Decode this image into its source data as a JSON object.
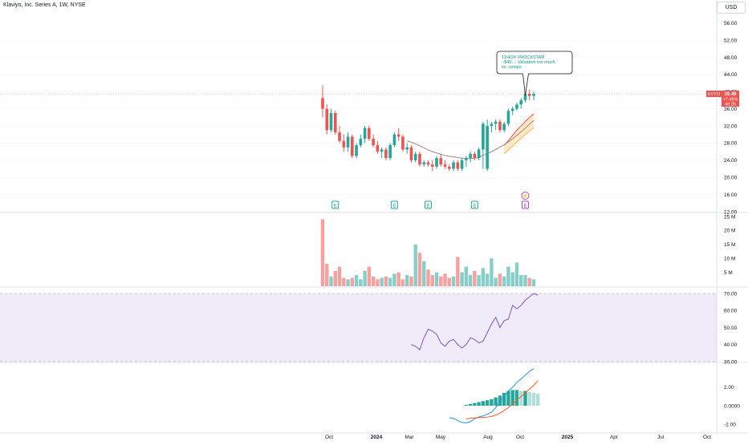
{
  "header": {
    "symbol_title": "Klaviyo, Inc. Series A, 1W, NYSE",
    "currency": "USD"
  },
  "price_badge": {
    "ticker": "KVYO",
    "price": "39.49",
    "change": "+7.46%",
    "countdown": "4d 2h"
  },
  "annotation": {
    "lines": [
      "11/4/24 VROCKSTAR",
      "~$40.... Valuation too much",
      "vs. comps"
    ]
  },
  "event_markers": {
    "earnings_label": "E",
    "dividend_symbol": "⚡"
  },
  "colors": {
    "up": "#26a69a",
    "down": "#ef5350",
    "rsi": "#7e57c2",
    "macd": "#2196f3",
    "signal": "#ff5722",
    "ma": "#a1887f",
    "band": "#f9a825"
  },
  "chart_data": [
    {
      "type": "candlestick",
      "name": "price",
      "ylim": [
        12,
        58
      ],
      "yticks": [
        "56.00",
        "52.00",
        "48.00",
        "44.00",
        "40.00",
        "36.00",
        "32.00",
        "28.00",
        "24.00",
        "20.00",
        "16.00",
        "12.00"
      ],
      "last_price": 39.49,
      "candles": [
        [
          38.5,
          41.5,
          34,
          36
        ],
        [
          36,
          37,
          30,
          31
        ],
        [
          31,
          36,
          30.5,
          35
        ],
        [
          35,
          35.5,
          30,
          30.5
        ],
        [
          30.5,
          32,
          28,
          28.5
        ],
        [
          28.5,
          30,
          26,
          27
        ],
        [
          27,
          30.5,
          26,
          29.5
        ],
        [
          29.5,
          30,
          24.5,
          25
        ],
        [
          25,
          28,
          24.5,
          27.5
        ],
        [
          27.5,
          30,
          27,
          29
        ],
        [
          29,
          32,
          28,
          31.5
        ],
        [
          31.5,
          32,
          28.5,
          29
        ],
        [
          29,
          30,
          27,
          27.5
        ],
        [
          27.5,
          28.5,
          25.5,
          26
        ],
        [
          26,
          27,
          24.5,
          26.5
        ],
        [
          26.5,
          27,
          24,
          24.5
        ],
        [
          24.5,
          28,
          24,
          27.5
        ],
        [
          27.5,
          30.5,
          27,
          30
        ],
        [
          30,
          31.5,
          28.5,
          29.5
        ],
        [
          29.5,
          30,
          26,
          26.5
        ],
        [
          26.5,
          28,
          25.5,
          27
        ],
        [
          27,
          27.5,
          23.5,
          24
        ],
        [
          24,
          26,
          23.5,
          25.5
        ],
        [
          25.5,
          26,
          22.5,
          23
        ],
        [
          23,
          24,
          22.5,
          23.5
        ],
        [
          23.5,
          24,
          22.5,
          23
        ],
        [
          23,
          24,
          21.5,
          22.5
        ],
        [
          22.5,
          25,
          22,
          24.5
        ],
        [
          24.5,
          25.5,
          22.5,
          23
        ],
        [
          23,
          24,
          22,
          22.5
        ],
        [
          22.5,
          23,
          21.5,
          22
        ],
        [
          22,
          24,
          21.5,
          23.5
        ],
        [
          23.5,
          24,
          21.5,
          22
        ],
        [
          22,
          24.5,
          21.5,
          24
        ],
        [
          24,
          25,
          22.5,
          24.5
        ],
        [
          24.5,
          26,
          23.5,
          25.5
        ],
        [
          25.5,
          26,
          24,
          24.5
        ],
        [
          24.5,
          27,
          24,
          26.5
        ],
        [
          26.5,
          33,
          22,
          32.5
        ],
        [
          22,
          33.5,
          21.5,
          32
        ],
        [
          32,
          33,
          30.5,
          32.5
        ],
        [
          32.5,
          33.5,
          31,
          33
        ],
        [
          33,
          33.5,
          30.5,
          31
        ],
        [
          31,
          33,
          30.5,
          32.5
        ],
        [
          32.5,
          36,
          32,
          35.5
        ],
        [
          35.5,
          36.5,
          34.5,
          36
        ],
        [
          36,
          37.5,
          35.5,
          37
        ],
        [
          37,
          38.5,
          36,
          38
        ],
        [
          38,
          40,
          37.5,
          39.5
        ],
        [
          39.5,
          40.5,
          38,
          39
        ],
        [
          39,
          40,
          38,
          39.49
        ]
      ],
      "ma": [
        null,
        null,
        null,
        null,
        null,
        null,
        null,
        null,
        null,
        null,
        null,
        null,
        null,
        null,
        null,
        null,
        null,
        null,
        null,
        null,
        28.5,
        28.2,
        27.8,
        27.4,
        26.9,
        26.4,
        26.0,
        25.7,
        25.4,
        25.1,
        24.9,
        24.8,
        24.6,
        24.5,
        24.4,
        24.4,
        24.5,
        24.6,
        25.2,
        25.5,
        26.0,
        26.5,
        27.1,
        27.6,
        28.3,
        29.0,
        29.8,
        30.6,
        31.5,
        32.4,
        33.3
      ],
      "band_upper": [
        null,
        null,
        null,
        null,
        null,
        null,
        null,
        null,
        null,
        null,
        null,
        null,
        null,
        null,
        null,
        null,
        null,
        null,
        null,
        null,
        null,
        null,
        null,
        null,
        null,
        null,
        null,
        null,
        null,
        null,
        null,
        null,
        null,
        null,
        null,
        null,
        null,
        null,
        null,
        null,
        null,
        null,
        null,
        27.5,
        28.6,
        29.8,
        31.0,
        32.0,
        33.0,
        34.0,
        34.8
      ],
      "band_lower": [
        null,
        null,
        null,
        null,
        null,
        null,
        null,
        null,
        null,
        null,
        null,
        null,
        null,
        null,
        null,
        null,
        null,
        null,
        null,
        null,
        null,
        null,
        null,
        null,
        null,
        null,
        null,
        null,
        null,
        null,
        null,
        null,
        null,
        null,
        null,
        null,
        null,
        null,
        null,
        null,
        null,
        null,
        null,
        25.5,
        26.4,
        27.3,
        28.2,
        29.1,
        30.0,
        30.8,
        31.5
      ],
      "earnings_at": [
        3,
        17,
        25,
        36,
        48
      ],
      "dividend_at": 48,
      "annotation_at": 48
    },
    {
      "type": "bar",
      "name": "volume",
      "unit": "M",
      "ylim": [
        0,
        25
      ],
      "yticks": [
        "25 M",
        "20 M",
        "15 M",
        "10 M",
        "5 M"
      ],
      "values": [
        24,
        8,
        3.5,
        5.5,
        7,
        3,
        2.5,
        3,
        4,
        2.5,
        5.5,
        7,
        3.5,
        2.5,
        3,
        3.5,
        3,
        4.5,
        5,
        2.5,
        4,
        3.5,
        15,
        12,
        9,
        6,
        4,
        5,
        3.5,
        4.5,
        3,
        3.5,
        10.5,
        5,
        7,
        4,
        5.5,
        4,
        6.5,
        4.5,
        10,
        3,
        4.5,
        3.5,
        7,
        5,
        8.5,
        4,
        4,
        3,
        2.5
      ]
    },
    {
      "type": "line",
      "name": "RSI",
      "ylim": [
        30,
        70
      ],
      "yticks": [
        "70.00",
        "60.00",
        "50.00",
        "40.00",
        "30.00"
      ],
      "start_index": 21,
      "values": [
        40,
        39,
        37,
        44,
        49,
        48,
        46,
        41,
        39,
        42,
        43,
        40,
        38,
        40,
        44,
        43,
        41,
        42,
        47,
        52,
        56,
        50,
        54,
        55,
        63,
        61,
        63,
        66,
        68,
        70,
        69
      ]
    },
    {
      "type": "line",
      "name": "MACD",
      "ylim": [
        -2,
        4
      ],
      "yticks": [
        "2.00",
        "0.0000",
        "-2.00"
      ],
      "macd_start": 30,
      "macd": [
        -1.3,
        -1.35,
        -1.6,
        -1.8,
        -1.85,
        -1.7,
        -1.4,
        -1.2,
        -1.1,
        -0.9,
        -0.7,
        -0.2,
        0.4,
        1.0,
        1.6,
        2.0,
        2.5,
        2.9,
        3.3,
        3.7,
        4.0
      ],
      "signal_start": 34,
      "signal": [
        -1.4,
        -1.35,
        -1.3,
        -1.28,
        -1.26,
        -1.22,
        -1.15,
        -1.0,
        -0.8,
        -0.5,
        -0.2,
        0.2,
        0.6,
        1.0,
        1.4,
        1.8,
        2.2,
        2.7
      ],
      "hist_start": 34,
      "hist": [
        0.1,
        0.2,
        0.3,
        0.4,
        0.5,
        0.6,
        0.7,
        0.9,
        1.1,
        1.4,
        1.6,
        1.7,
        1.7,
        1.6,
        1.6,
        1.5,
        1.4,
        1.3
      ]
    }
  ],
  "x_axis": {
    "labels": [
      "Oct",
      "2024",
      "Mar",
      "May",
      "Aug",
      "Oct",
      "2025",
      "Apr",
      "Jul",
      "Oct"
    ]
  }
}
